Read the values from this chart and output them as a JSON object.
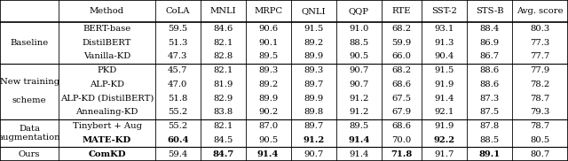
{
  "col_headers": [
    "Method",
    "CoLA",
    "MNLI",
    "MRPC",
    "QNLI",
    "QQP",
    "RTE",
    "SST-2",
    "STS-B",
    "Avg. score"
  ],
  "row_groups": [
    {
      "group_label": "Baseline",
      "rows": [
        {
          "method": "BERT-base",
          "vals": [
            "59.5",
            "84.6",
            "90.6",
            "91.5",
            "91.0",
            "68.2",
            "93.1",
            "88.4",
            "80.3"
          ],
          "bold": []
        },
        {
          "method": "DistilBERT",
          "vals": [
            "51.3",
            "82.1",
            "90.1",
            "89.2",
            "88.5",
            "59.9",
            "91.3",
            "86.9",
            "77.3"
          ],
          "bold": []
        },
        {
          "method": "Vanilla-KD",
          "vals": [
            "47.3",
            "82.8",
            "89.5",
            "89.9",
            "90.5",
            "66.0",
            "90.4",
            "86.7",
            "77.7"
          ],
          "bold": []
        }
      ]
    },
    {
      "group_label": "New training\n\nscheme",
      "rows": [
        {
          "method": "PKD",
          "vals": [
            "45.7",
            "82.1",
            "89.3",
            "89.3",
            "90.7",
            "68.2",
            "91.5",
            "88.6",
            "77.9"
          ],
          "bold": []
        },
        {
          "method": "ALP-KD",
          "vals": [
            "47.0",
            "81.9",
            "89.2",
            "89.7",
            "90.7",
            "68.6",
            "91.9",
            "88.6",
            "78.2"
          ],
          "bold": []
        },
        {
          "method": "ALP-KD (DistilBERT)",
          "vals": [
            "51.8",
            "82.9",
            "89.9",
            "89.9",
            "91.2",
            "67.5",
            "91.4",
            "87.3",
            "78.7"
          ],
          "bold": []
        },
        {
          "method": "Annealing-KD",
          "vals": [
            "55.2",
            "83.8",
            "90.2",
            "89.8",
            "91.2",
            "67.9",
            "92.1",
            "87.5",
            "79.3"
          ],
          "bold": []
        }
      ]
    },
    {
      "group_label": "Data\naugmentation",
      "rows": [
        {
          "method": "Tinybert + Aug",
          "vals": [
            "55.2",
            "82.1",
            "87.0",
            "89.7",
            "89.5",
            "68.6",
            "91.9",
            "87.8",
            "78.7"
          ],
          "bold": []
        },
        {
          "method": "MATE-KD",
          "vals": [
            "60.4",
            "84.5",
            "90.5",
            "91.2",
            "91.4",
            "70.0",
            "92.2",
            "88.5",
            "80.5"
          ],
          "bold": [
            0,
            3,
            4,
            6
          ]
        }
      ]
    },
    {
      "group_label": "Ours",
      "rows": [
        {
          "method": "ComKD",
          "vals": [
            "59.4",
            "84.7",
            "91.4",
            "90.7",
            "91.4",
            "71.8",
            "91.7",
            "89.1",
            "80.7"
          ],
          "bold": [
            1,
            2,
            5,
            7
          ]
        }
      ]
    }
  ],
  "bold_method_rows": [
    "MATE-KD",
    "ComKD"
  ],
  "bg_color": "#ffffff",
  "font_size": 7.2
}
